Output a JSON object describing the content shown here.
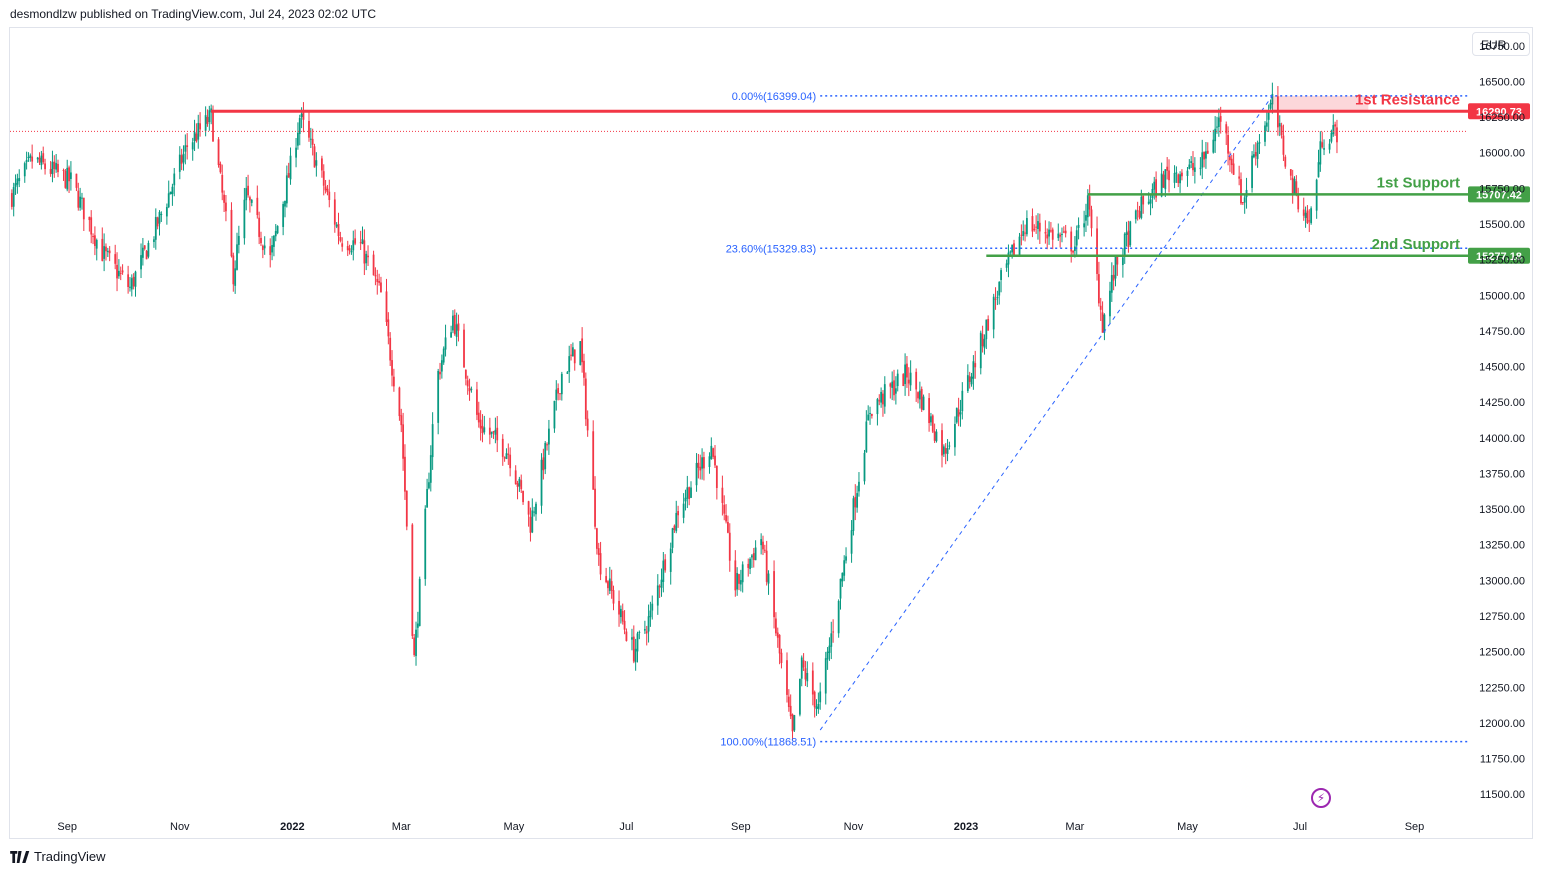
{
  "header": {
    "text": "desmondlzw published on TradingView.com, Jul 24, 2023 02:02 UTC"
  },
  "currency": "EUR",
  "footer": {
    "brand": "TradingView",
    "logo_icon": "tradingview-logo-icon"
  },
  "colors": {
    "up": "#089981",
    "down": "#f23645",
    "resistance": "#f23645",
    "support": "#43a047",
    "fib": "#2962ff",
    "text": "#131722",
    "axis_text": "#6b6f7a"
  },
  "chart_data": {
    "type": "candlestick",
    "title": "",
    "xlabel": "",
    "ylabel": "",
    "ylim": [
      11375,
      16875
    ],
    "y_ticks": [
      "11500.00",
      "11750.00",
      "12000.00",
      "12250.00",
      "12500.00",
      "12750.00",
      "13000.00",
      "13250.00",
      "13500.00",
      "13750.00",
      "14000.00",
      "14250.00",
      "14500.00",
      "14750.00",
      "15000.00",
      "15250.00",
      "15500.00",
      "15750.00",
      "16000.00",
      "16250.00",
      "16500.00",
      "16750.00"
    ],
    "x_ticks": [
      "Sep",
      "Nov",
      "2022",
      "Mar",
      "May",
      "Jul",
      "Sep",
      "Nov",
      "2023",
      "Mar",
      "May",
      "Jul",
      "Sep"
    ],
    "x_range": [
      "2021-08-01",
      "2023-09-30"
    ],
    "x_tick_dates": [
      "2021-09-01",
      "2021-11-01",
      "2022-01-01",
      "2022-03-01",
      "2022-05-01",
      "2022-07-01",
      "2022-09-01",
      "2022-11-01",
      "2023-01-01",
      "2023-03-01",
      "2023-05-01",
      "2023-07-01",
      "2023-09-01"
    ],
    "price_path": [
      [
        "2021-08-02",
        15700
      ],
      [
        "2021-08-13",
        15950
      ],
      [
        "2021-09-03",
        15800
      ],
      [
        "2021-09-20",
        15300
      ],
      [
        "2021-10-05",
        15050
      ],
      [
        "2021-10-20",
        15500
      ],
      [
        "2021-11-05",
        16050
      ],
      [
        "2021-11-18",
        16250
      ],
      [
        "2021-11-30",
        15150
      ],
      [
        "2021-12-07",
        15700
      ],
      [
        "2021-12-20",
        15250
      ],
      [
        "2021-12-31",
        15900
      ],
      [
        "2022-01-05",
        16250
      ],
      [
        "2022-01-15",
        15900
      ],
      [
        "2022-01-27",
        15400
      ],
      [
        "2022-02-07",
        15350
      ],
      [
        "2022-02-18",
        15000
      ],
      [
        "2022-03-01",
        14100
      ],
      [
        "2022-03-08",
        12450
      ],
      [
        "2022-03-20",
        14400
      ],
      [
        "2022-03-29",
        14850
      ],
      [
        "2022-04-12",
        14100
      ],
      [
        "2022-04-28",
        13900
      ],
      [
        "2022-05-10",
        13400
      ],
      [
        "2022-05-27",
        14450
      ],
      [
        "2022-06-06",
        14650
      ],
      [
        "2022-06-16",
        13150
      ],
      [
        "2022-07-05",
        12500
      ],
      [
        "2022-07-14",
        12750
      ],
      [
        "2022-07-29",
        13500
      ],
      [
        "2022-08-16",
        13950
      ],
      [
        "2022-08-29",
        12950
      ],
      [
        "2022-09-12",
        13300
      ],
      [
        "2022-09-29",
        11900
      ],
      [
        "2022-10-04",
        12400
      ],
      [
        "2022-10-13",
        12100
      ],
      [
        "2022-10-28",
        13200
      ],
      [
        "2022-11-10",
        14200
      ],
      [
        "2022-11-30",
        14450
      ],
      [
        "2022-12-07",
        14300
      ],
      [
        "2022-12-20",
        13900
      ],
      [
        "2023-01-05",
        14500
      ],
      [
        "2023-01-20",
        15100
      ],
      [
        "2023-02-02",
        15500
      ],
      [
        "2023-02-14",
        15450
      ],
      [
        "2023-03-01",
        15350
      ],
      [
        "2023-03-08",
        15650
      ],
      [
        "2023-03-16",
        14800
      ],
      [
        "2023-03-23",
        15200
      ],
      [
        "2023-04-05",
        15600
      ],
      [
        "2023-04-20",
        15850
      ],
      [
        "2023-05-08",
        15900
      ],
      [
        "2023-05-19",
        16250
      ],
      [
        "2023-05-31",
        15650
      ],
      [
        "2023-06-06",
        16000
      ],
      [
        "2023-06-16",
        16350
      ],
      [
        "2023-06-26",
        15800
      ],
      [
        "2023-07-06",
        15500
      ],
      [
        "2023-07-13",
        16100
      ],
      [
        "2023-07-21",
        16150
      ]
    ],
    "levels": [
      {
        "name": "1st Resistance",
        "value": "16290.73",
        "kind": "resistance"
      },
      {
        "name": "1st Support",
        "value": "15707.42",
        "kind": "support"
      },
      {
        "name": "2nd Support",
        "value": "15277.18",
        "kind": "support"
      }
    ],
    "fib_levels": [
      {
        "label": "0.00%(16399.04)",
        "value": 16399.04
      },
      {
        "label": "23.60%(15329.83)",
        "value": 15329.83
      },
      {
        "label": "100.00%(11868.51)",
        "value": 11868.51
      }
    ],
    "current_price_line": 16150,
    "trendline": {
      "from": [
        "2022-10-14",
        11950
      ],
      "to": [
        "2023-06-16",
        16399.04
      ]
    },
    "resistance_zone": {
      "from": "2023-06-16",
      "to": "2023-08-07",
      "low": 16290.73,
      "high": 16399.04
    },
    "grid": false,
    "legend": "none"
  }
}
